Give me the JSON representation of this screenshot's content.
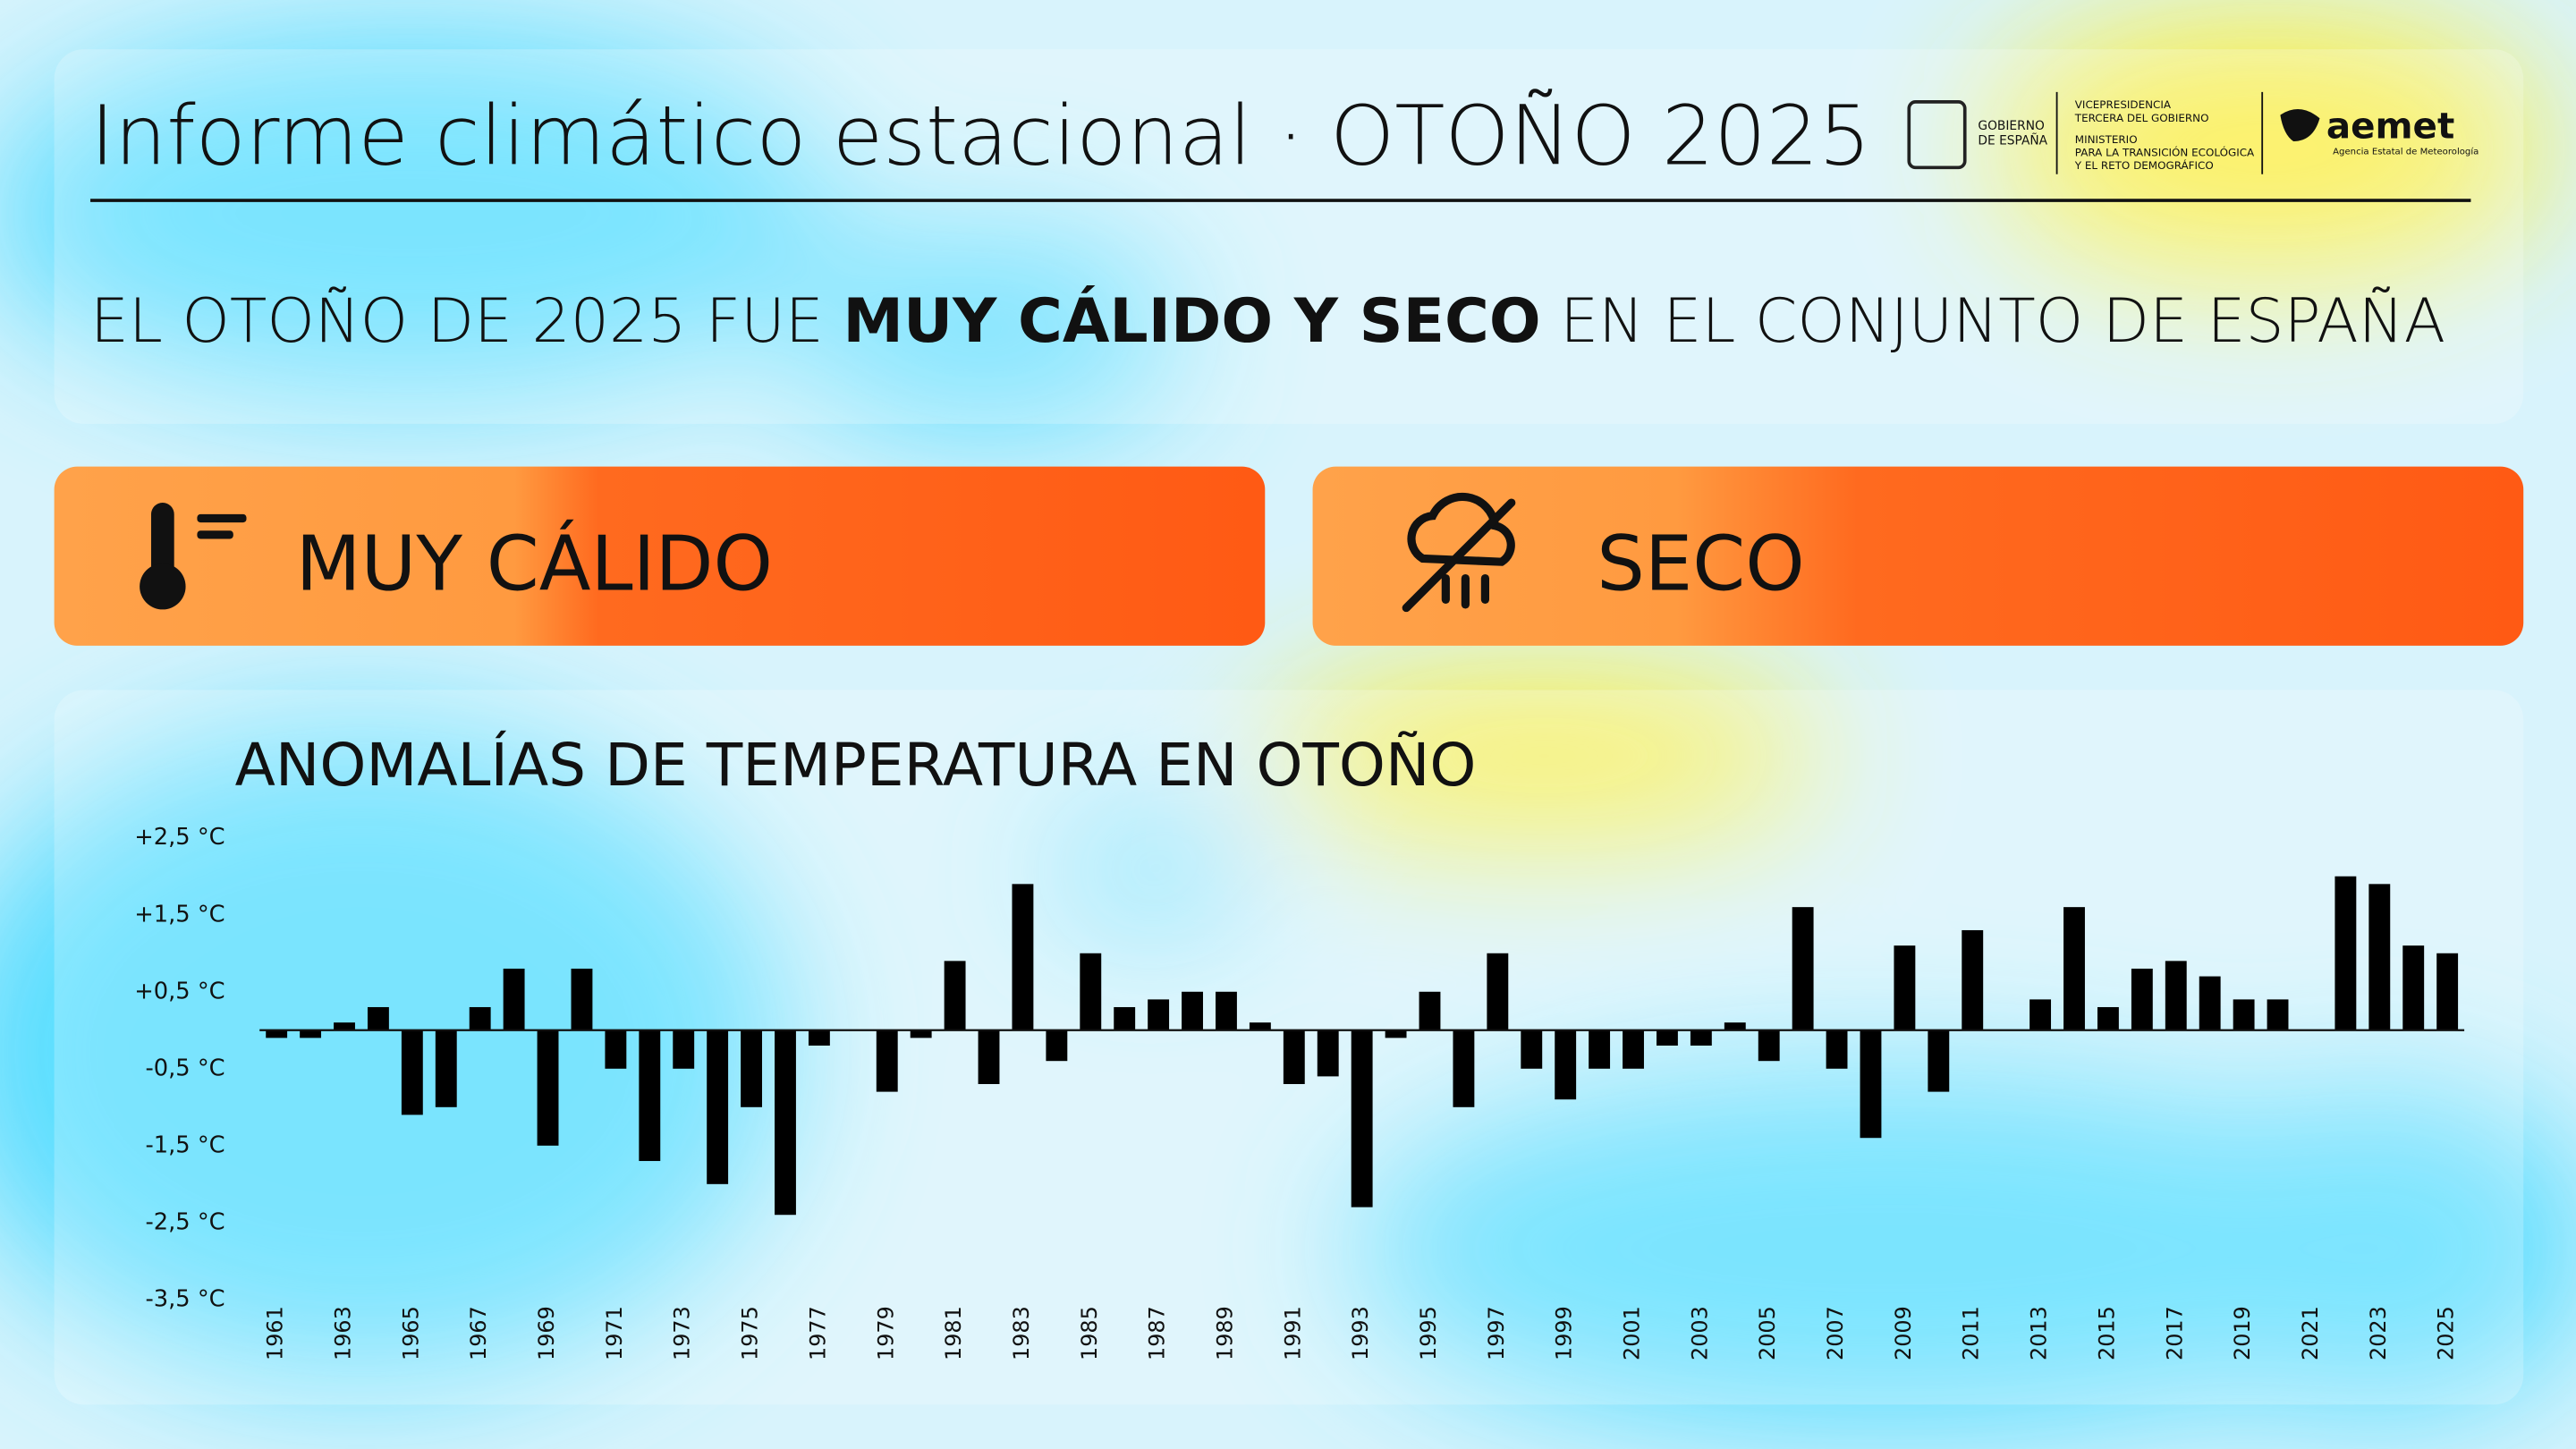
{
  "header": {
    "title": "Informe climático estacional · OTOÑO 2025",
    "logos": {
      "gobierno": [
        "GOBIERNO",
        "DE ESPAÑA"
      ],
      "vicepresidencia": [
        "VICEPRESIDENCIA",
        "TERCERA DEL GOBIERNO"
      ],
      "ministerio": [
        "MINISTERIO",
        "PARA LA TRANSICIÓN ECOLÓGICA",
        "Y EL RETO DEMOGRÁFICO"
      ],
      "aemet": "aemet",
      "aemet_sub": "Agencia Estatal de Meteorología"
    }
  },
  "headline": [
    "EL OTOÑO DE 2025 FUE ",
    "MUY CÁLIDO Y SECO",
    " EN EL CONJUNTO DE ESPAÑA"
  ],
  "badges": [
    "MUY CÁLIDO",
    "SECO"
  ],
  "chart_data": {
    "type": "bar",
    "title": "ANOMALÍAS DE TEMPERATURA EN OTOÑO",
    "categories": [
      "1961",
      null,
      "1963",
      null,
      "1965",
      null,
      "1967",
      null,
      "1969",
      null,
      "1971",
      null,
      "1973",
      null,
      "1975",
      null,
      "1977",
      null,
      "1979",
      null,
      "1981",
      null,
      "1983",
      null,
      "1985",
      null,
      "1987",
      null,
      "1989",
      null,
      "1991",
      null,
      "1993",
      null,
      "1995",
      null,
      "1997",
      null,
      "1999",
      null,
      "2001",
      null,
      "2003",
      null,
      "2005",
      null,
      "2007",
      null,
      "2009",
      null,
      "2011",
      null,
      "2013",
      null,
      "2015",
      null,
      "2017",
      null,
      "2019",
      null,
      "2021",
      null,
      "2023",
      null,
      "2025"
    ],
    "values": [
      -0.1,
      -0.1,
      0.1,
      0.3,
      -1.1,
      -1.0,
      0.3,
      0.8,
      -1.5,
      0.8,
      -0.5,
      -1.7,
      -0.5,
      -2.0,
      -1.0,
      -2.4,
      -0.2,
      0.0,
      -0.8,
      -0.1,
      0.9,
      -0.7,
      1.9,
      -0.4,
      1.0,
      0.3,
      0.4,
      0.5,
      0.5,
      0.1,
      -0.7,
      -0.6,
      -2.3,
      -0.1,
      0.5,
      -1.0,
      1.0,
      -0.5,
      -0.9,
      -0.5,
      -0.5,
      -0.2,
      -0.2,
      0.1,
      -0.4,
      1.6,
      -0.5,
      -1.4,
      1.1,
      -0.8,
      1.3,
      0.0,
      0.4,
      1.6,
      0.3,
      0.8,
      0.9,
      0.7,
      0.4,
      0.4,
      0.0,
      2.0,
      1.9,
      1.1,
      1.0
    ],
    "color": "#000000",
    "ylim": [
      -3.5,
      2.5
    ],
    "yticks": [
      {
        "value": 2.5,
        "label": "+2,5 °C"
      },
      {
        "value": 1.5,
        "label": "+1,5 °C"
      },
      {
        "value": 0.5,
        "label": "+0,5 °C"
      },
      {
        "value": -0.5,
        "label": "-0,5 °C"
      },
      {
        "value": -1.5,
        "label": "-1,5 °C"
      },
      {
        "value": -2.5,
        "label": "-2,5 °C"
      },
      {
        "value": -3.5,
        "label": "-3,5 °C"
      }
    ],
    "grid": false
  }
}
